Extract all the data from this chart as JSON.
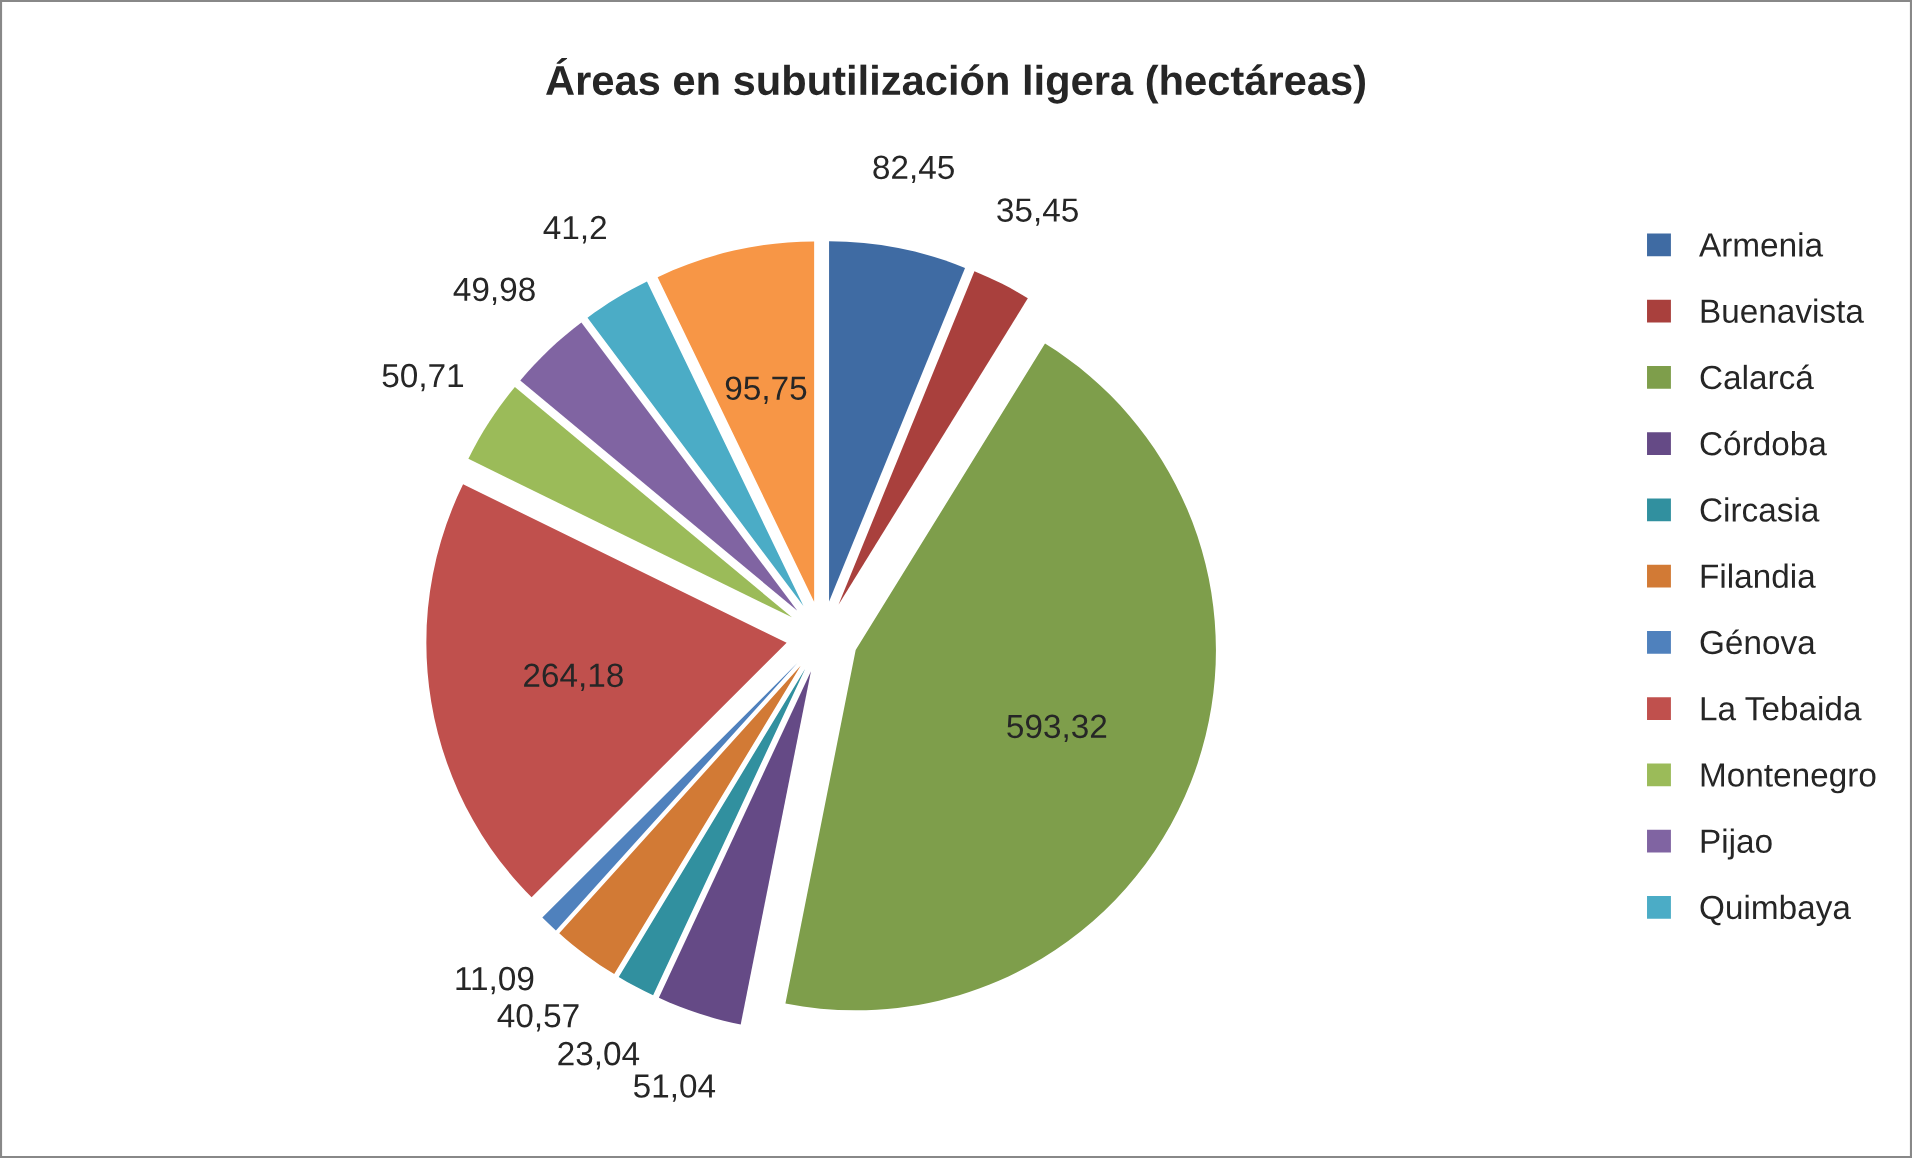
{
  "chart_data": {
    "type": "pie",
    "title": "Áreas en subutilización ligera (hectáreas)",
    "categories": [
      "Armenia",
      "Buenavista",
      "Calarcá",
      "Córdoba",
      "Circasia",
      "Filandia",
      "Génova",
      "La Tebaida",
      "Montenegro",
      "Pijao",
      "Quimbaya",
      null
    ],
    "values": [
      82.45,
      35.45,
      593.32,
      51.04,
      23.04,
      40.57,
      11.09,
      264.18,
      50.71,
      49.98,
      41.2,
      95.75
    ],
    "value_labels": [
      "82,45",
      "35,45",
      "593,32",
      "51,04",
      "23,04",
      "40,57",
      "11,09",
      "264,18",
      "50,71",
      "49,98",
      "41,2",
      "95,75"
    ],
    "colors": [
      "#3f6ba3",
      "#a9403d",
      "#7e9e4b",
      "#654a86",
      "#31909f",
      "#d27a35",
      "#4f81bd",
      "#c0504d",
      "#9bbb59",
      "#8064a2",
      "#4bacc6",
      "#f79646"
    ],
    "legend": "right"
  }
}
